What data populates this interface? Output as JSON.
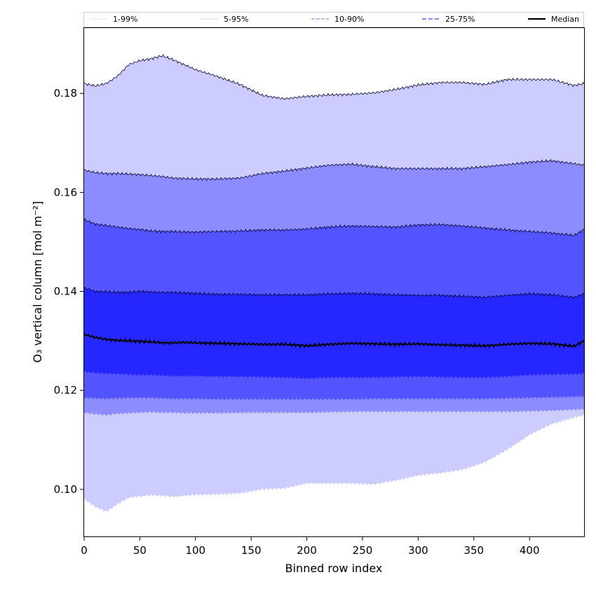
{
  "chart_data": {
    "type": "area",
    "xlabel": "Binned row index",
    "ylabel": "O₃ vertical column [mol m⁻²]",
    "xlim": [
      0,
      449
    ],
    "ylim": [
      0.0905,
      0.1932
    ],
    "x_ticks": [
      0,
      50,
      100,
      150,
      200,
      250,
      300,
      350,
      400
    ],
    "x_tick_labels": [
      "0",
      "50",
      "100",
      "150",
      "200",
      "250",
      "300",
      "350",
      "400"
    ],
    "y_ticks": [
      0.1,
      0.12,
      0.14,
      0.16,
      0.18
    ],
    "y_tick_labels": [
      "0.10",
      "0.12",
      "0.14",
      "0.16",
      "0.18"
    ],
    "grid": false,
    "legend_position": "top",
    "x": [
      0,
      10,
      20,
      30,
      40,
      50,
      60,
      70,
      80,
      90,
      100,
      120,
      140,
      160,
      180,
      200,
      220,
      240,
      260,
      280,
      300,
      320,
      340,
      360,
      380,
      400,
      420,
      440,
      449
    ],
    "bands": [
      {
        "name": "1-99%",
        "color": "#ccccff",
        "lower": [
          0.098,
          0.0965,
          0.0955,
          0.097,
          0.0983,
          0.0986,
          0.0988,
          0.0987,
          0.0985,
          0.0987,
          0.0989,
          0.099,
          0.0992,
          0.1,
          0.1002,
          0.1012,
          0.1012,
          0.1012,
          0.101,
          0.1018,
          0.1028,
          0.1033,
          0.104,
          0.1055,
          0.108,
          0.111,
          0.1132,
          0.1145,
          0.115
        ],
        "upper": [
          0.182,
          0.1815,
          0.182,
          0.1835,
          0.1858,
          0.1866,
          0.187,
          0.1876,
          0.1868,
          0.1858,
          0.1848,
          0.1834,
          0.1818,
          0.1796,
          0.1789,
          0.1794,
          0.1797,
          0.1798,
          0.1801,
          0.1808,
          0.1817,
          0.1822,
          0.1822,
          0.1818,
          0.1828,
          0.1828,
          0.1828,
          0.1816,
          0.182
        ]
      },
      {
        "name": "5-95%",
        "color": "#8c8cff",
        "lower": [
          0.1155,
          0.1152,
          0.115,
          0.1153,
          0.1154,
          0.1155,
          0.1156,
          0.1155,
          0.1155,
          0.1154,
          0.1154,
          0.1154,
          0.1155,
          0.1155,
          0.1155,
          0.1155,
          0.1156,
          0.1157,
          0.1157,
          0.1157,
          0.1157,
          0.1157,
          0.1157,
          0.1157,
          0.1157,
          0.1158,
          0.1159,
          0.1161,
          0.1162
        ],
        "upper": [
          0.1645,
          0.164,
          0.1638,
          0.1638,
          0.1637,
          0.1636,
          0.1634,
          0.1632,
          0.1629,
          0.1628,
          0.1627,
          0.1627,
          0.1629,
          0.1638,
          0.1643,
          0.1649,
          0.1655,
          0.1657,
          0.1652,
          0.1648,
          0.1648,
          0.1648,
          0.1648,
          0.1652,
          0.1656,
          0.1661,
          0.1664,
          0.1658,
          0.1655
        ]
      },
      {
        "name": "10-90%",
        "color": "#5454ff",
        "lower": [
          0.1185,
          0.1184,
          0.1183,
          0.1184,
          0.1185,
          0.1185,
          0.1185,
          0.1184,
          0.1183,
          0.1183,
          0.1183,
          0.1182,
          0.1182,
          0.1182,
          0.1182,
          0.1182,
          0.1182,
          0.1182,
          0.1183,
          0.1183,
          0.1183,
          0.1183,
          0.1183,
          0.1183,
          0.1184,
          0.1185,
          0.1186,
          0.1187,
          0.1188
        ],
        "upper": [
          0.1545,
          0.1536,
          0.1533,
          0.153,
          0.1527,
          0.1525,
          0.1522,
          0.1521,
          0.1521,
          0.152,
          0.152,
          0.1521,
          0.1522,
          0.1524,
          0.1524,
          0.1526,
          0.153,
          0.1532,
          0.1531,
          0.153,
          0.1534,
          0.1535,
          0.1532,
          0.1528,
          0.1524,
          0.1521,
          0.1518,
          0.1513,
          0.1525
        ]
      },
      {
        "name": "25-75%",
        "color": "#2626ff",
        "lower": [
          0.1238,
          0.1235,
          0.1234,
          0.1233,
          0.1232,
          0.1231,
          0.1231,
          0.123,
          0.1229,
          0.1229,
          0.1229,
          0.1228,
          0.1228,
          0.1227,
          0.1226,
          0.1224,
          0.1226,
          0.1226,
          0.1226,
          0.1227,
          0.1228,
          0.1227,
          0.1226,
          0.1226,
          0.1228,
          0.1231,
          0.1232,
          0.1233,
          0.1234
        ],
        "upper": [
          0.1407,
          0.14,
          0.1399,
          0.1398,
          0.1398,
          0.14,
          0.1399,
          0.1398,
          0.1398,
          0.1397,
          0.1396,
          0.1394,
          0.1394,
          0.1393,
          0.1393,
          0.1393,
          0.1395,
          0.1396,
          0.1395,
          0.1393,
          0.1392,
          0.1392,
          0.139,
          0.1388,
          0.1392,
          0.1395,
          0.1393,
          0.1388,
          0.1395
        ]
      }
    ],
    "median": {
      "name": "Median",
      "color": "#000000",
      "values": [
        0.1313,
        0.1307,
        0.1303,
        0.1301,
        0.13,
        0.1299,
        0.1298,
        0.1296,
        0.1296,
        0.1297,
        0.1296,
        0.1295,
        0.1294,
        0.1293,
        0.1293,
        0.129,
        0.1293,
        0.1295,
        0.1294,
        0.1293,
        0.1294,
        0.1292,
        0.1291,
        0.129,
        0.1293,
        0.1295,
        0.1294,
        0.1289,
        0.13
      ]
    },
    "legend": [
      {
        "label": "1-99%",
        "color": "#d9d9f0",
        "dash": "solid",
        "width": 0.8
      },
      {
        "label": "5-95%",
        "color": "#b0b0e6",
        "dash": "2,1",
        "width": 0.8
      },
      {
        "label": "10-90%",
        "color": "#8c8cf0",
        "dash": "5,2",
        "width": 1.2
      },
      {
        "label": "25-75%",
        "color": "#6060e0",
        "dash": "6,3",
        "width": 1.4
      },
      {
        "label": "Median",
        "color": "#000000",
        "dash": "solid",
        "width": 2.2
      }
    ]
  }
}
